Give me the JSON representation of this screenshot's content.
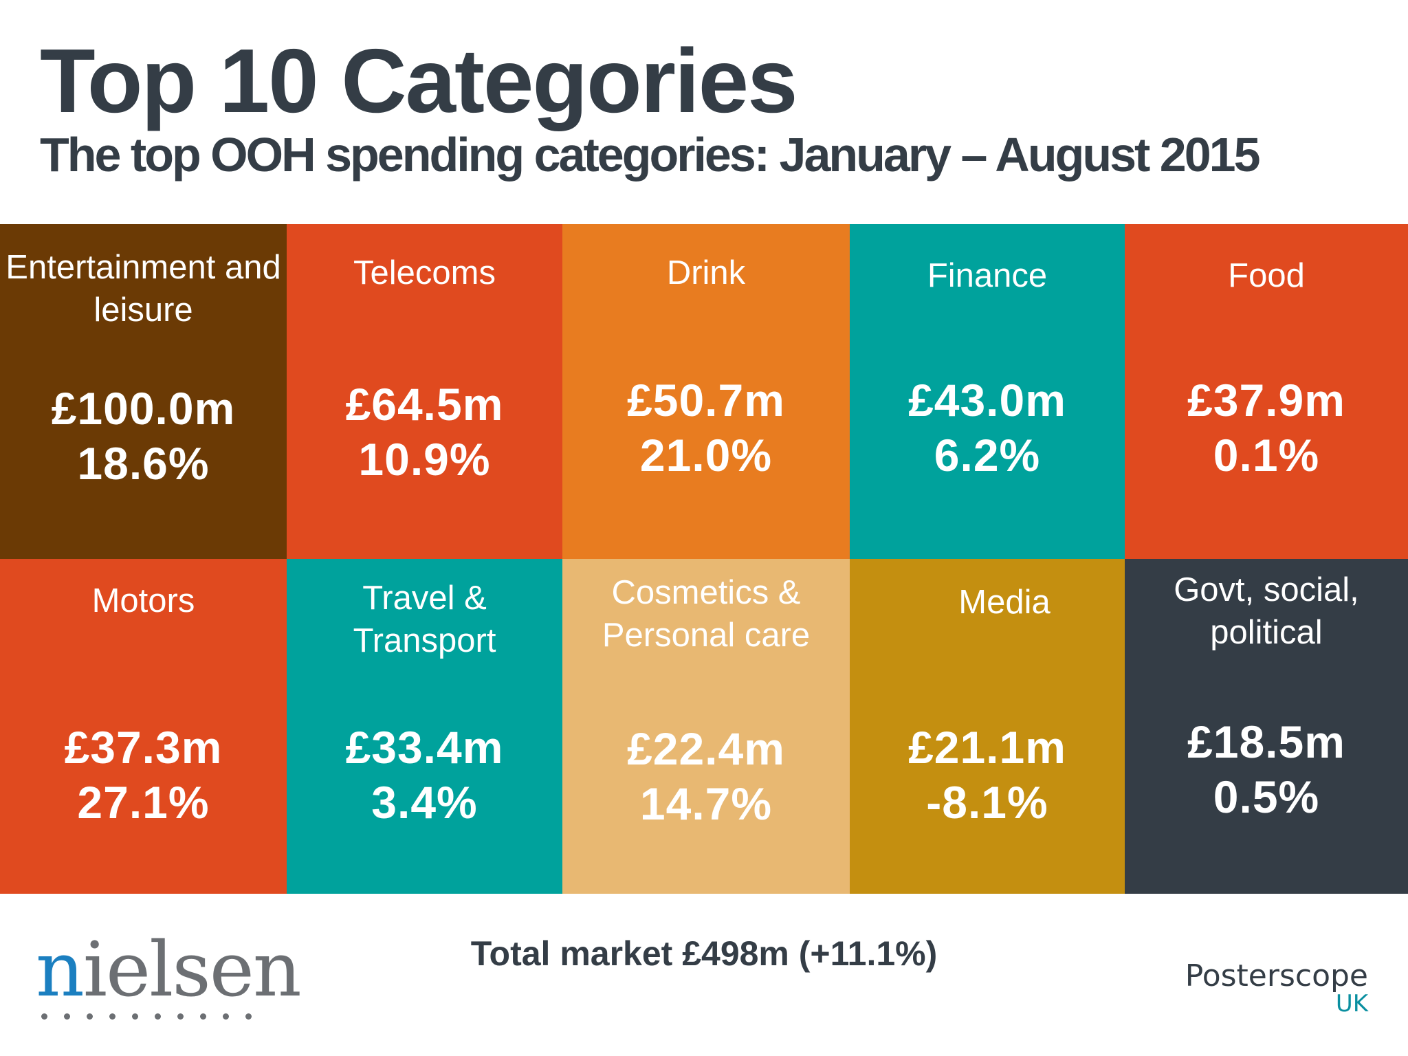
{
  "header": {
    "title": "Top 10 Categories",
    "subtitle": "The top OOH spending categories: January – August 2015"
  },
  "tiles": [
    {
      "name": "Entertainment and leisure",
      "spend": "£100.0m",
      "change": "18.6%",
      "color": "#6b3a05"
    },
    {
      "name": "Telecoms",
      "spend": "£64.5m",
      "change": "10.9%",
      "color": "#e04a1f"
    },
    {
      "name": "Drink",
      "spend": "£50.7m",
      "change": "21.0%",
      "color": "#e87c20"
    },
    {
      "name": "Finance",
      "spend": "£43.0m",
      "change": "6.2%",
      "color": "#00a29c"
    },
    {
      "name": "Food",
      "spend": "£37.9m",
      "change": "0.1%",
      "color": "#e04a1f"
    },
    {
      "name": "Motors",
      "spend": "£37.3m",
      "change": "27.1%",
      "color": "#e04a1f"
    },
    {
      "name": "Travel & Transport",
      "spend": "£33.4m",
      "change": "3.4%",
      "color": "#00a29c"
    },
    {
      "name": "Cosmetics & Personal care",
      "spend": "£22.4m",
      "change": "14.7%",
      "color": "#e8b872"
    },
    {
      "name": "Media",
      "spend": "£21.1m",
      "change": "-8.1%",
      "color": "#c48f10"
    },
    {
      "name": "Govt, social, political",
      "spend": "£18.5m",
      "change": "0.5%",
      "color": "#343d46"
    }
  ],
  "footer": {
    "total": "Total market £498m (+11.1%)",
    "logo_left": {
      "first": "n",
      "rest": "ielsen"
    },
    "logo_right": {
      "brand": "Posterscope",
      "region": "UK"
    }
  }
}
